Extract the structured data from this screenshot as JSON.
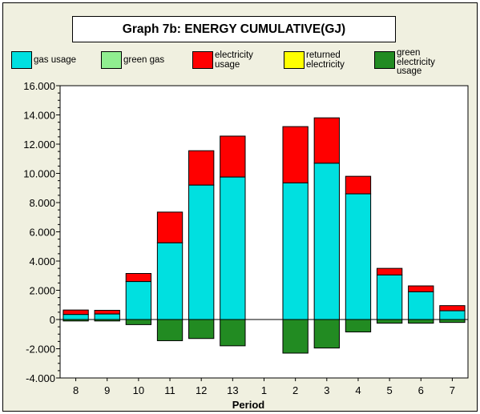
{
  "chart_data": {
    "type": "bar",
    "title": "Graph 7b: ENERGY CUMULATIVE(GJ)",
    "xlabel": "Period",
    "ylabel": "",
    "categories": [
      "8",
      "9",
      "10",
      "11",
      "12",
      "13",
      "1",
      "2",
      "3",
      "4",
      "5",
      "6",
      "7"
    ],
    "ylim": [
      -4000,
      16000
    ],
    "yticks": [
      "16.000",
      "14.000",
      "12.000",
      "10.000",
      "8.000",
      "6.000",
      "4.000",
      "2.000",
      "0",
      "-2.000",
      "-4.000"
    ],
    "ytick_values": [
      16000,
      14000,
      12000,
      10000,
      8000,
      6000,
      4000,
      2000,
      0,
      -2000,
      -4000
    ],
    "stacked": true,
    "series": [
      {
        "name": "gas usage",
        "color": "#00e0e0",
        "values": [
          350,
          380,
          2600,
          5250,
          9200,
          9750,
          0,
          9350,
          10700,
          8600,
          3050,
          1900,
          600
        ]
      },
      {
        "name": "green gas",
        "color": "#90ee90",
        "values": [
          0,
          0,
          0,
          0,
          0,
          0,
          0,
          0,
          0,
          0,
          0,
          0,
          0
        ]
      },
      {
        "name": "electricity usage",
        "color": "#ff0000",
        "values": [
          300,
          250,
          550,
          2100,
          2350,
          2800,
          0,
          3850,
          3100,
          1200,
          450,
          400,
          350
        ]
      },
      {
        "name": "returned electricity",
        "color": "#ffff00",
        "values": [
          0,
          0,
          0,
          0,
          0,
          0,
          0,
          0,
          0,
          0,
          0,
          0,
          0
        ]
      },
      {
        "name": "green electricity usage",
        "color": "#228b22",
        "values": [
          -100,
          -100,
          -350,
          -1450,
          -1300,
          -1800,
          0,
          -2300,
          -1950,
          -850,
          -250,
          -250,
          -200
        ]
      }
    ],
    "legend_placement": "top",
    "grid": false
  },
  "legend": {
    "items": [
      {
        "label": "gas usage",
        "color": "#00e0e0"
      },
      {
        "label": "green gas",
        "color": "#90ee90"
      },
      {
        "label": "electricity usage",
        "color": "#ff0000"
      },
      {
        "label": "returned electricity",
        "color": "#ffff00"
      },
      {
        "label": "green electricity usage",
        "color": "#228b22"
      }
    ]
  }
}
